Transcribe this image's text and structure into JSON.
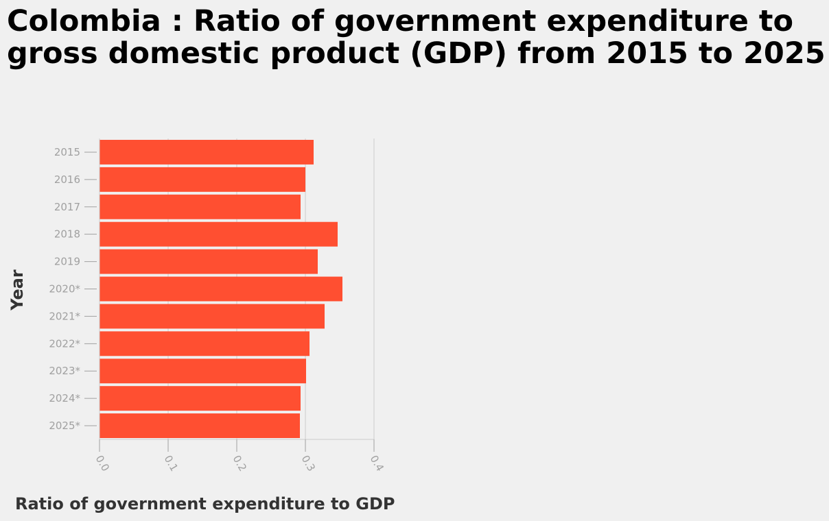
{
  "chart_data": {
    "type": "bar",
    "orientation": "horizontal",
    "title": "Colombia : Ratio of government expenditure to gross domestic product (GDP) from 2015 to 2025",
    "xlabel": "Ratio of government expenditure to GDP",
    "ylabel": "Year",
    "categories": [
      "2015",
      "2016",
      "2017",
      "2018",
      "2019",
      "2020*",
      "2021*",
      "2022*",
      "2023*",
      "2024*",
      "2025*"
    ],
    "values": [
      0.312,
      0.3,
      0.293,
      0.347,
      0.318,
      0.354,
      0.328,
      0.306,
      0.301,
      0.293,
      0.292
    ],
    "xlim": [
      0,
      0.4
    ],
    "xticks": [
      "0.0",
      "0.1",
      "0.2",
      "0.3",
      "0.4"
    ],
    "grid": true,
    "bar_color": "#ff4f31",
    "grid_color": "#cccccc",
    "tick_label_color": "#a0a0a0"
  }
}
